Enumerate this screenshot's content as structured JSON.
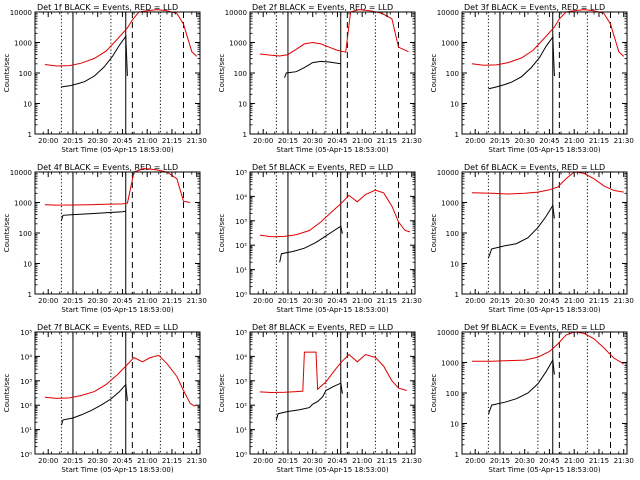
{
  "figure": {
    "ylabel": "Counts/sec",
    "xlabel": "Start Time (05-Apr-15 18:53:00)"
  },
  "x_ticks": [
    "20:00",
    "20:15",
    "20:30",
    "20:45",
    "21:00",
    "21:15",
    "21:30"
  ],
  "legend": {
    "black": "BLACK = Events",
    "red": "RED = LLD"
  },
  "colors": {
    "events": "#000000",
    "lld": "#e00000"
  },
  "chart_data": [
    {
      "type": "line",
      "title": "Det 1f BLACK = Events, RED = LLD",
      "yscale": "log",
      "ylim": [
        1,
        10000
      ],
      "y_ticks": [
        "1",
        "10",
        "100",
        "1000",
        "10000"
      ],
      "xlim": [
        "19:52",
        "21:32"
      ],
      "series": [
        {
          "name": "Events",
          "color": "#000000",
          "x": [
            "20:08",
            "20:13",
            "20:18",
            "20:22",
            "20:28",
            "20:34",
            "20:39",
            "20:43",
            "20:47",
            "20:48"
          ],
          "y": [
            35,
            38,
            45,
            52,
            80,
            160,
            350,
            800,
            1600,
            80
          ]
        },
        {
          "name": "LLD",
          "color": "#e00000",
          "x": [
            "19:58",
            "20:05",
            "20:13",
            "20:20",
            "20:28",
            "20:35",
            "20:42",
            "20:48",
            "20:51",
            "20:55",
            "21:00",
            "21:06",
            "21:12",
            "21:18",
            "21:22",
            "21:27",
            "21:30"
          ],
          "y": [
            190,
            170,
            175,
            210,
            300,
            520,
            1300,
            3000,
            5500,
            10000,
            11000,
            12000,
            11000,
            9000,
            4000,
            500,
            350
          ]
        }
      ],
      "vlines": {
        "solid": [
          "20:15",
          "20:47"
        ],
        "dashed": [
          "20:51",
          "21:22"
        ],
        "dotted": [
          "20:08",
          "20:38",
          "21:08"
        ]
      }
    },
    {
      "type": "line",
      "title": "Det 2f BLACK = Events, RED = LLD",
      "yscale": "log",
      "ylim": [
        1,
        10000
      ],
      "y_ticks": [
        "1",
        "10",
        "100",
        "1000",
        "10000"
      ],
      "xlim": [
        "19:52",
        "21:32"
      ],
      "series": [
        {
          "name": "Events",
          "color": "#000000",
          "x": [
            "20:13",
            "20:14",
            "20:20",
            "20:25",
            "20:30",
            "20:35",
            "20:40",
            "20:45",
            "20:47"
          ],
          "y": [
            70,
            100,
            110,
            150,
            220,
            240,
            230,
            210,
            200
          ]
        },
        {
          "name": "LLD",
          "color": "#e00000",
          "x": [
            "19:58",
            "20:05",
            "20:10",
            "20:15",
            "20:20",
            "20:25",
            "20:30",
            "20:35",
            "20:40",
            "20:45",
            "20:50",
            "20:53",
            "20:58",
            "21:05",
            "21:12",
            "21:18",
            "21:22",
            "21:28"
          ],
          "y": [
            420,
            380,
            360,
            400,
            600,
            900,
            1000,
            900,
            700,
            550,
            480,
            10000,
            12000,
            11000,
            9000,
            6000,
            700,
            500
          ]
        }
      ],
      "vlines": {
        "solid": [
          "20:15",
          "20:47"
        ],
        "dashed": [
          "20:51",
          "21:22"
        ],
        "dotted": [
          "20:08",
          "20:38",
          "21:08"
        ]
      }
    },
    {
      "type": "line",
      "title": "Det 3f BLACK = Events, RED = LLD",
      "yscale": "log",
      "ylim": [
        1,
        10000
      ],
      "y_ticks": [
        "1",
        "10",
        "100",
        "1000",
        "10000"
      ],
      "xlim": [
        "19:52",
        "21:32"
      ],
      "series": [
        {
          "name": "Events",
          "color": "#000000",
          "x": [
            "20:08",
            "20:13",
            "20:18",
            "20:22",
            "20:28",
            "20:34",
            "20:39",
            "20:43",
            "20:47",
            "20:48"
          ],
          "y": [
            30,
            35,
            42,
            50,
            75,
            150,
            320,
            750,
            1500,
            80
          ]
        },
        {
          "name": "LLD",
          "color": "#e00000",
          "x": [
            "19:58",
            "20:05",
            "20:13",
            "20:20",
            "20:28",
            "20:35",
            "20:42",
            "20:48",
            "20:51",
            "20:55",
            "21:00",
            "21:06",
            "21:12",
            "21:18",
            "21:22",
            "21:27",
            "21:30"
          ],
          "y": [
            200,
            180,
            185,
            220,
            310,
            550,
            1400,
            3200,
            6000,
            10000,
            11000,
            12000,
            11000,
            9000,
            4000,
            500,
            350
          ]
        }
      ],
      "vlines": {
        "solid": [
          "20:15",
          "20:47"
        ],
        "dashed": [
          "20:51",
          "21:22"
        ],
        "dotted": [
          "20:08",
          "20:38",
          "21:08"
        ]
      }
    },
    {
      "type": "line",
      "title": "Det 4f BLACK = Events, RED = LLD",
      "yscale": "log",
      "ylim": [
        1,
        10000
      ],
      "y_ticks": [
        "1",
        "10",
        "100",
        "1000",
        "10000"
      ],
      "xlim": [
        "19:52",
        "21:32"
      ],
      "series": [
        {
          "name": "Events",
          "color": "#000000",
          "x": [
            "20:08",
            "20:09",
            "20:15",
            "20:25",
            "20:35",
            "20:45",
            "20:47"
          ],
          "y": [
            250,
            380,
            400,
            430,
            460,
            500,
            520
          ]
        },
        {
          "name": "LLD",
          "color": "#e00000",
          "x": [
            "19:58",
            "20:05",
            "20:15",
            "20:25",
            "20:35",
            "20:45",
            "20:48",
            "20:52",
            "20:58",
            "21:05",
            "21:12",
            "21:18",
            "21:22",
            "21:26"
          ],
          "y": [
            850,
            820,
            830,
            850,
            880,
            900,
            950,
            10000,
            13000,
            12000,
            10000,
            6000,
            1100,
            1000
          ]
        }
      ],
      "vlines": {
        "solid": [
          "20:15",
          "20:47"
        ],
        "dashed": [
          "20:51",
          "21:22"
        ],
        "dotted": [
          "20:08",
          "20:38",
          "21:08"
        ]
      }
    },
    {
      "type": "line",
      "title": "Det 5f BLACK = Events, RED = LLD",
      "yscale": "log",
      "ylim": [
        1,
        100000
      ],
      "y_ticks": [
        "10⁰",
        "10¹",
        "10²",
        "10³",
        "10⁴",
        "10⁵"
      ],
      "xlim": [
        "19:52",
        "21:32"
      ],
      "series": [
        {
          "name": "Events",
          "color": "#000000",
          "x": [
            "20:10",
            "20:11",
            "20:18",
            "20:25",
            "20:32",
            "20:38",
            "20:43",
            "20:47",
            "20:48"
          ],
          "y": [
            20,
            45,
            55,
            75,
            130,
            240,
            400,
            600,
            300
          ]
        },
        {
          "name": "LLD",
          "color": "#e00000",
          "x": [
            "19:58",
            "20:05",
            "20:13",
            "20:20",
            "20:28",
            "20:35",
            "20:42",
            "20:47",
            "20:52",
            "20:57",
            "21:02",
            "21:08",
            "21:13",
            "21:18",
            "21:22",
            "21:26",
            "21:29"
          ],
          "y": [
            260,
            220,
            230,
            270,
            400,
            900,
            2500,
            5000,
            11000,
            6000,
            12000,
            18000,
            14000,
            4000,
            900,
            400,
            350
          ]
        }
      ],
      "vlines": {
        "solid": [
          "20:15",
          "20:47"
        ],
        "dashed": [
          "20:51",
          "21:22"
        ],
        "dotted": [
          "20:08",
          "20:38",
          "21:08"
        ]
      }
    },
    {
      "type": "line",
      "title": "Det 6f BLACK = Events, RED = LLD",
      "yscale": "log",
      "ylim": [
        1,
        10000
      ],
      "y_ticks": [
        "1",
        "10",
        "100",
        "1000",
        "10000"
      ],
      "xlim": [
        "19:52",
        "21:32"
      ],
      "series": [
        {
          "name": "Events",
          "color": "#000000",
          "x": [
            "20:08",
            "20:10",
            "20:18",
            "20:25",
            "20:32",
            "20:38",
            "20:43",
            "20:47",
            "20:48"
          ],
          "y": [
            15,
            30,
            38,
            45,
            70,
            150,
            350,
            800,
            300
          ]
        },
        {
          "name": "LLD",
          "color": "#e00000",
          "x": [
            "19:58",
            "20:10",
            "20:20",
            "20:30",
            "20:38",
            "20:45",
            "20:50",
            "20:55",
            "21:00",
            "21:06",
            "21:12",
            "21:18",
            "21:24",
            "21:30"
          ],
          "y": [
            2100,
            2000,
            1900,
            2000,
            2200,
            2600,
            3200,
            6000,
            10000,
            9000,
            6000,
            3500,
            2500,
            2200
          ]
        }
      ],
      "vlines": {
        "solid": [
          "20:15",
          "20:47"
        ],
        "dashed": [
          "20:51",
          "21:22"
        ],
        "dotted": [
          "20:08",
          "20:38",
          "21:08"
        ]
      }
    },
    {
      "type": "line",
      "title": "Det 7f BLACK = Events, RED = LLD",
      "yscale": "log",
      "ylim": [
        1,
        100000
      ],
      "y_ticks": [
        "10⁰",
        "10¹",
        "10²",
        "10³",
        "10⁴",
        "10⁵"
      ],
      "xlim": [
        "19:52",
        "21:32"
      ],
      "series": [
        {
          "name": "Events",
          "color": "#000000",
          "x": [
            "20:08",
            "20:09",
            "20:15",
            "20:20",
            "20:26",
            "20:32",
            "20:38",
            "20:43",
            "20:47",
            "20:48"
          ],
          "y": [
            15,
            25,
            30,
            40,
            60,
            100,
            180,
            350,
            700,
            150
          ]
        },
        {
          "name": "LLD",
          "color": "#e00000",
          "x": [
            "19:58",
            "20:05",
            "20:13",
            "20:20",
            "20:28",
            "20:35",
            "20:42",
            "20:47",
            "20:52",
            "20:57",
            "21:02",
            "21:07",
            "21:12",
            "21:18",
            "21:22",
            "21:26",
            "21:29"
          ],
          "y": [
            210,
            190,
            200,
            250,
            360,
            700,
            1800,
            4000,
            9000,
            6000,
            9000,
            11000,
            5000,
            1500,
            400,
            120,
            90
          ]
        }
      ],
      "vlines": {
        "solid": [
          "20:15",
          "20:47"
        ],
        "dashed": [
          "20:51",
          "21:22"
        ],
        "dotted": [
          "20:08",
          "20:38",
          "21:08"
        ]
      }
    },
    {
      "type": "line",
      "title": "Det 8f BLACK = Events, RED = LLD",
      "yscale": "log",
      "ylim": [
        1,
        100000
      ],
      "y_ticks": [
        "10⁰",
        "10¹",
        "10²",
        "10³",
        "10⁴",
        "10⁵"
      ],
      "xlim": [
        "19:52",
        "21:32"
      ],
      "series": [
        {
          "name": "Events",
          "color": "#000000",
          "x": [
            "20:08",
            "20:09",
            "20:15",
            "20:22",
            "20:28",
            "20:30",
            "20:33",
            "20:36",
            "20:38",
            "20:43",
            "20:47",
            "20:48"
          ],
          "y": [
            25,
            45,
            55,
            65,
            80,
            110,
            140,
            220,
            400,
            600,
            800,
            300
          ]
        },
        {
          "name": "LLD",
          "color": "#e00000",
          "x": [
            "19:58",
            "20:05",
            "20:13",
            "20:20",
            "20:24",
            "20:25",
            "20:32",
            "20:33",
            "20:38",
            "20:43",
            "20:47",
            "20:52",
            "20:57",
            "21:02",
            "21:08",
            "21:13",
            "21:18",
            "21:22",
            "21:27"
          ],
          "y": [
            350,
            330,
            340,
            360,
            380,
            15000,
            15000,
            450,
            900,
            2500,
            5500,
            12000,
            6000,
            12000,
            9000,
            4000,
            1000,
            500,
            400
          ]
        }
      ],
      "vlines": {
        "solid": [
          "20:15",
          "20:47"
        ],
        "dashed": [
          "20:51",
          "21:22"
        ],
        "dotted": [
          "20:08",
          "20:38",
          "21:08"
        ]
      }
    },
    {
      "type": "line",
      "title": "Det 9f BLACK = Events, RED = LLD",
      "yscale": "log",
      "ylim": [
        1,
        10000
      ],
      "y_ticks": [
        "1",
        "10",
        "100",
        "1000",
        "10000"
      ],
      "xlim": [
        "19:52",
        "21:32"
      ],
      "series": [
        {
          "name": "Events",
          "color": "#000000",
          "x": [
            "20:08",
            "20:10",
            "20:18",
            "20:25",
            "20:32",
            "20:38",
            "20:43",
            "20:47",
            "20:48"
          ],
          "y": [
            20,
            40,
            50,
            65,
            100,
            200,
            500,
            1200,
            400
          ]
        },
        {
          "name": "LLD",
          "color": "#e00000",
          "x": [
            "19:58",
            "20:10",
            "20:20",
            "20:30",
            "20:38",
            "20:45",
            "20:50",
            "20:55",
            "21:00",
            "21:06",
            "21:12",
            "21:18",
            "21:24",
            "21:30"
          ],
          "y": [
            1100,
            1100,
            1150,
            1200,
            1500,
            2300,
            4000,
            8000,
            10000,
            9000,
            6000,
            3000,
            1400,
            900
          ]
        }
      ],
      "vlines": {
        "solid": [
          "20:15",
          "20:47"
        ],
        "dashed": [
          "20:51",
          "21:22"
        ],
        "dotted": [
          "20:08",
          "20:38",
          "21:08"
        ]
      }
    }
  ]
}
